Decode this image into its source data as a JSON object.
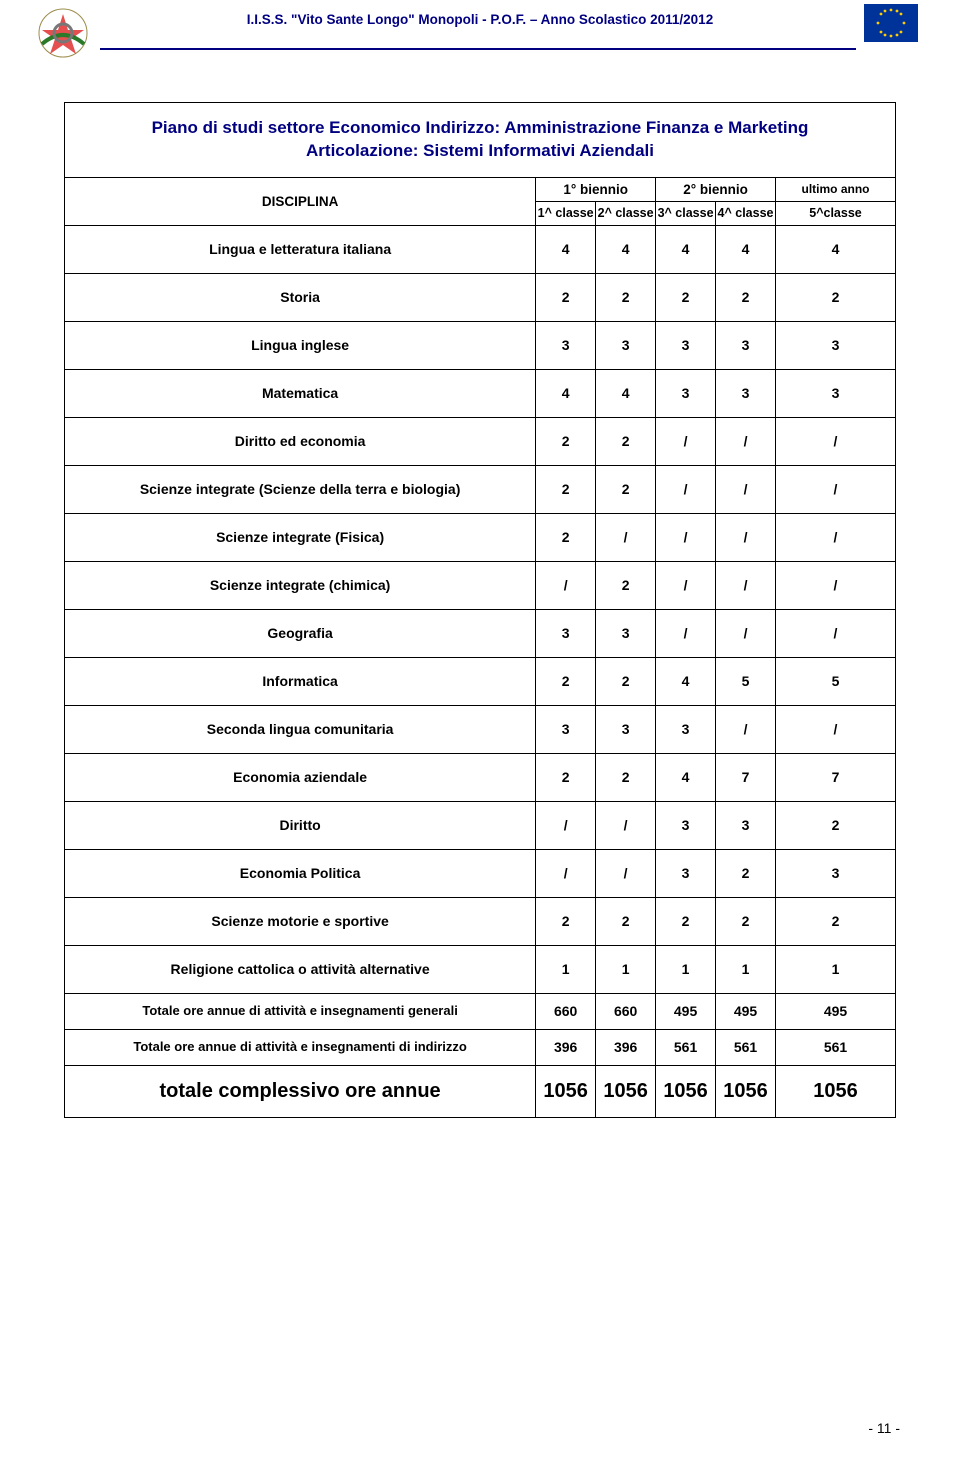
{
  "header": {
    "title": "I.I.S.S. \"Vito Sante Longo\" Monopoli - P.O.F. – Anno Scolastico 2011/2012"
  },
  "doc": {
    "title_line1": "Piano di studi settore Economico Indirizzo: Amministrazione Finanza e Marketing",
    "title_line2": "Articolazione: Sistemi Informativi Aziendali"
  },
  "table": {
    "head": {
      "disciplina": "DISCIPLINA",
      "biennio1": "1° biennio",
      "biennio2": "2° biennio",
      "ultimo": "ultimo anno",
      "c1": "1^ classe",
      "c2": "2^ classe",
      "c3": "3^ classe",
      "c4": "4^ classe",
      "c5": "5^classe"
    },
    "rows": [
      {
        "label": "Lingua e letteratura italiana",
        "v": [
          "4",
          "4",
          "4",
          "4",
          "4"
        ]
      },
      {
        "label": "Storia",
        "v": [
          "2",
          "2",
          "2",
          "2",
          "2"
        ]
      },
      {
        "label": "Lingua inglese",
        "v": [
          "3",
          "3",
          "3",
          "3",
          "3"
        ]
      },
      {
        "label": "Matematica",
        "v": [
          "4",
          "4",
          "3",
          "3",
          "3"
        ]
      },
      {
        "label": "Diritto ed economia",
        "v": [
          "2",
          "2",
          "/",
          "/",
          "/"
        ]
      },
      {
        "label": "Scienze integrate (Scienze della terra e biologia)",
        "v": [
          "2",
          "2",
          "/",
          "/",
          "/"
        ]
      },
      {
        "label": "Scienze integrate (Fisica)",
        "v": [
          "2",
          "/",
          "/",
          "/",
          "/"
        ]
      },
      {
        "label": "Scienze integrate (chimica)",
        "v": [
          "/",
          "2",
          "/",
          "/",
          "/"
        ]
      },
      {
        "label": "Geografia",
        "v": [
          "3",
          "3",
          "/",
          "/",
          "/"
        ]
      },
      {
        "label": "Informatica",
        "v": [
          "2",
          "2",
          "4",
          "5",
          "5"
        ]
      },
      {
        "label": "Seconda lingua comunitaria",
        "v": [
          "3",
          "3",
          "3",
          "/",
          "/"
        ]
      },
      {
        "label": "Economia aziendale",
        "v": [
          "2",
          "2",
          "4",
          "7",
          "7"
        ]
      },
      {
        "label": "Diritto",
        "v": [
          "/",
          "/",
          "3",
          "3",
          "2"
        ]
      },
      {
        "label": "Economia Politica",
        "v": [
          "/",
          "/",
          "3",
          "2",
          "3"
        ]
      },
      {
        "label": "Scienze motorie e sportive",
        "v": [
          "2",
          "2",
          "2",
          "2",
          "2"
        ]
      },
      {
        "label": "Religione cattolica o attività alternative",
        "v": [
          "1",
          "1",
          "1",
          "1",
          "1"
        ]
      },
      {
        "label": "Totale ore annue di attività e insegnamenti generali",
        "v": [
          "660",
          "660",
          "495",
          "495",
          "495"
        ],
        "thin": true
      },
      {
        "label": "Totale ore annue di attività e insegnamenti di indirizzo",
        "v": [
          "396",
          "396",
          "561",
          "561",
          "561"
        ],
        "thin": true
      }
    ],
    "total": {
      "label": "totale complessivo ore annue",
      "v": [
        "1056",
        "1056",
        "1056",
        "1056",
        "1056"
      ]
    }
  },
  "footer": {
    "page": "- 11 -"
  },
  "colors": {
    "header_blue": "#000080",
    "eu_blue": "#003399",
    "eu_gold": "#ffcc00",
    "border": "#000000",
    "background": "#ffffff"
  }
}
